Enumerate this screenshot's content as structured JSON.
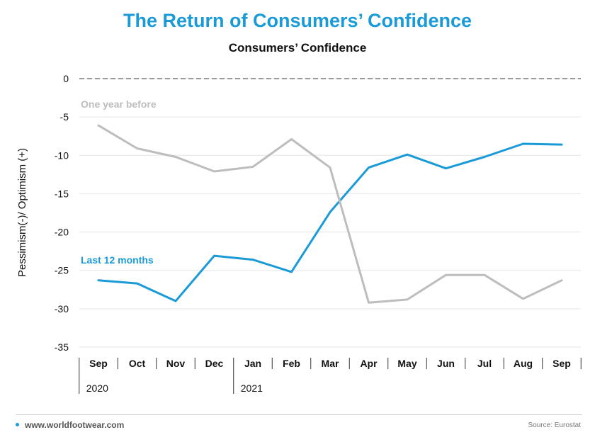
{
  "header": {
    "title": "The Return of Consumers’ Confidence",
    "subtitle": "Consumers’ Confidence"
  },
  "footer": {
    "site": "www.worldfootwear.com",
    "source": "Source: Eurostat"
  },
  "colors": {
    "title": "#1a9bd7",
    "last_12_months": "#1a9bd7",
    "one_year_before": "#bdbdbd",
    "zero_line": "#9a9a9a",
    "grid": "#e6e6e6"
  },
  "chart_data": {
    "type": "line",
    "title": "Consumers’ Confidence",
    "ylabel": "Pessimism(-)/ Optimism (+)",
    "xlabel": "",
    "ylim": [
      -35,
      0
    ],
    "yticks": [
      0,
      -5,
      -10,
      -15,
      -20,
      -25,
      -30,
      -35
    ],
    "grid": true,
    "categories": [
      "Sep",
      "Oct",
      "Nov",
      "Dec",
      "Jan",
      "Feb",
      "Mar",
      "Apr",
      "May",
      "Jun",
      "Jul",
      "Aug",
      "Sep"
    ],
    "years": [
      {
        "label": "2020",
        "start_index": 0
      },
      {
        "label": "2021",
        "start_index": 4
      }
    ],
    "series": [
      {
        "name": "Last 12 months",
        "color": "#1a9bd7",
        "values": [
          -26.3,
          -26.7,
          -29.0,
          -23.1,
          -23.6,
          -25.2,
          -17.4,
          -11.6,
          -9.9,
          -11.7,
          -10.2,
          -8.5,
          -8.6
        ]
      },
      {
        "name": "One year before",
        "color": "#bdbdbd",
        "values": [
          -6.1,
          -9.1,
          -10.2,
          -12.1,
          -11.5,
          -7.9,
          -11.6,
          -29.2,
          -28.8,
          -25.6,
          -25.6,
          -28.7,
          -26.3
        ]
      }
    ]
  }
}
